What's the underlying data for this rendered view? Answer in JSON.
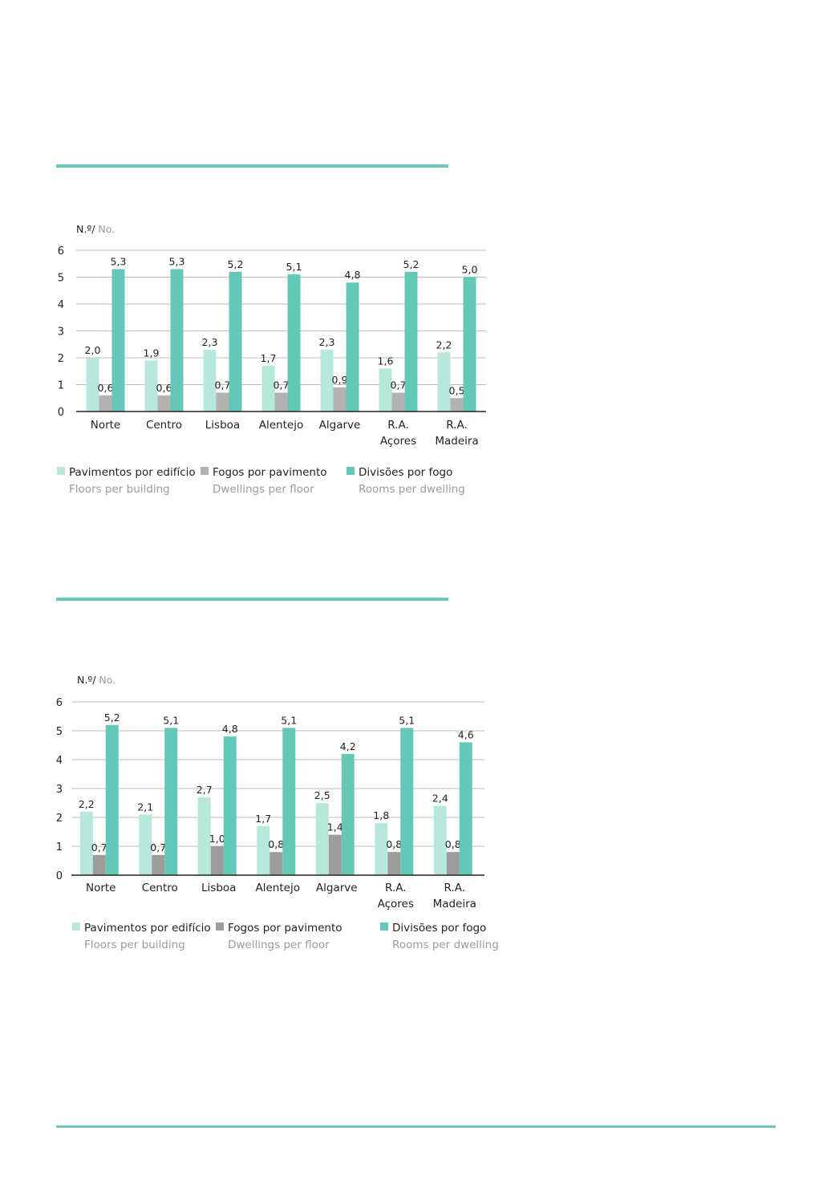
{
  "colors": {
    "floors": "#b6e8de",
    "dwellings": "#b2b2b2",
    "dwellings2": "#9c9c9c",
    "rooms": "#64c8b9",
    "rule": "#67c9bb"
  },
  "chart_data": [
    {
      "type": "bar",
      "unit_pt": "N.º/",
      "unit_en": " No.",
      "categories": [
        [
          "Norte"
        ],
        [
          "Centro"
        ],
        [
          "Lisboa"
        ],
        [
          "Alentejo"
        ],
        [
          "Algarve"
        ],
        [
          "R.A.",
          "Açores"
        ],
        [
          "R.A.",
          "Madeira"
        ]
      ],
      "ylim": [
        0,
        6
      ],
      "yticks": [
        "0",
        "1",
        "2",
        "3",
        "4",
        "5",
        "6"
      ],
      "grid": true,
      "legend_position": "bottom",
      "series": [
        {
          "name": "Pavimentos por edifício",
          "name_en": "Floors per building",
          "values": [
            2.0,
            1.9,
            2.3,
            1.7,
            2.3,
            1.6,
            2.2
          ],
          "labels": [
            "2,0",
            "1,9",
            "2,3",
            "1,7",
            "2,3",
            "1,6",
            "2,2"
          ]
        },
        {
          "name": "Fogos por pavimento",
          "name_en": "Dwellings per floor",
          "values": [
            0.6,
            0.6,
            0.7,
            0.7,
            0.9,
            0.7,
            0.5
          ],
          "labels": [
            "0,6",
            "0,6",
            "0,7",
            "0,7",
            "0,9",
            "0,7",
            "0,5"
          ]
        },
        {
          "name": "Divisões por fogo",
          "name_en": "Rooms per dwelling",
          "values": [
            5.3,
            5.3,
            5.2,
            5.1,
            4.8,
            5.2,
            5.0
          ],
          "labels": [
            "5,3",
            "5,3",
            "5,2",
            "5,1",
            "4,8",
            "5,2",
            "5,0"
          ]
        }
      ]
    },
    {
      "type": "bar",
      "unit_pt": "N.º/",
      "unit_en": " No.",
      "categories": [
        [
          "Norte"
        ],
        [
          "Centro"
        ],
        [
          "Lisboa"
        ],
        [
          "Alentejo"
        ],
        [
          "Algarve"
        ],
        [
          "R.A.",
          "Açores"
        ],
        [
          "R.A.",
          "Madeira"
        ]
      ],
      "ylim": [
        0,
        6
      ],
      "yticks": [
        "0",
        "1",
        "2",
        "3",
        "4",
        "5",
        "6"
      ],
      "grid": true,
      "legend_position": "bottom",
      "series": [
        {
          "name": "Pavimentos por edifício",
          "name_en": "Floors per building",
          "values": [
            2.2,
            2.1,
            2.7,
            1.7,
            2.5,
            1.8,
            2.4
          ],
          "labels": [
            "2,2",
            "2,1",
            "2,7",
            "1,7",
            "2,5",
            "1,8",
            "2,4"
          ]
        },
        {
          "name": "Fogos por pavimento",
          "name_en": "Dwellings per floor",
          "values": [
            0.7,
            0.7,
            1.0,
            0.8,
            1.4,
            0.8,
            0.8
          ],
          "labels": [
            "0,7",
            "0,7",
            "1,0",
            "0,8",
            "1,4",
            "0,8",
            "0,8"
          ]
        },
        {
          "name": "Divisões por fogo",
          "name_en": "Rooms per dwelling",
          "values": [
            5.2,
            5.1,
            4.8,
            5.1,
            4.2,
            5.1,
            4.6
          ],
          "labels": [
            "5,2",
            "5,1",
            "4,8",
            "5,1",
            "4,2",
            "5,1",
            "4,6"
          ]
        }
      ]
    }
  ]
}
